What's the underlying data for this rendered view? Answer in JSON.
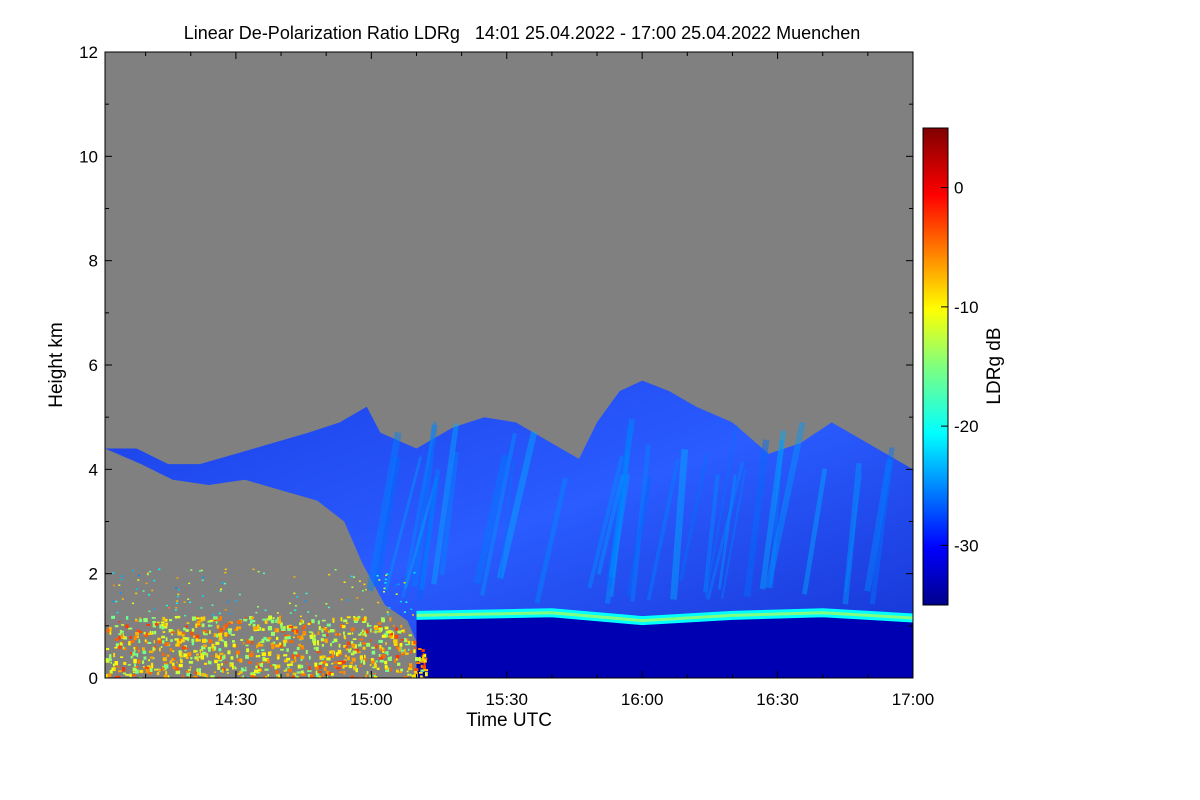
{
  "chart_data": {
    "type": "heatmap",
    "title": "Linear De-Polarization Ratio LDRg   14:01 25.04.2022 - 17:00 25.04.2022 Muenchen",
    "xlabel": "Time UTC",
    "ylabel": "Height km",
    "x_ticks": [
      "14:30",
      "15:00",
      "15:30",
      "16:00",
      "16:30",
      "17:00"
    ],
    "x_tick_minutes": [
      870,
      900,
      930,
      960,
      990,
      1020
    ],
    "xlim_minutes": [
      841,
      1020
    ],
    "y_ticks": [
      0,
      2,
      4,
      6,
      8,
      10,
      12
    ],
    "ylim": [
      0,
      12
    ],
    "colorbar": {
      "label": "LDRg dB",
      "ticks": [
        0,
        -10,
        -20,
        -30
      ],
      "range": [
        -35,
        5
      ],
      "colormap": "jet"
    },
    "no_data_color": "#808080",
    "features": {
      "cloud_top_km": [
        [
          841,
          4.4
        ],
        [
          848,
          4.4
        ],
        [
          855,
          4.1
        ],
        [
          862,
          4.1
        ],
        [
          870,
          4.3
        ],
        [
          878,
          4.5
        ],
        [
          886,
          4.7
        ],
        [
          893,
          4.9
        ],
        [
          899,
          5.2
        ],
        [
          902,
          4.7
        ],
        [
          910,
          4.4
        ],
        [
          918,
          4.8
        ],
        [
          925,
          5.0
        ],
        [
          932,
          4.9
        ],
        [
          940,
          4.5
        ],
        [
          946,
          4.2
        ],
        [
          950,
          4.9
        ],
        [
          955,
          5.5
        ],
        [
          960,
          5.7
        ],
        [
          966,
          5.5
        ],
        [
          972,
          5.2
        ],
        [
          980,
          4.9
        ],
        [
          988,
          4.3
        ],
        [
          995,
          4.5
        ],
        [
          1002,
          4.9
        ],
        [
          1010,
          4.5
        ],
        [
          1020,
          4.0
        ]
      ],
      "cloud_base_km": [
        [
          841,
          4.4
        ],
        [
          849,
          4.1
        ],
        [
          856,
          3.8
        ],
        [
          864,
          3.7
        ],
        [
          872,
          3.8
        ],
        [
          880,
          3.6
        ],
        [
          888,
          3.4
        ],
        [
          894,
          3.0
        ],
        [
          898,
          2.2
        ],
        [
          903,
          1.4
        ],
        [
          908,
          1.1
        ],
        [
          912,
          0.3
        ],
        [
          914,
          0.0
        ],
        [
          1020,
          0.0
        ]
      ],
      "melting_layer": {
        "start_min": 910,
        "end_min": 1020,
        "height_km": [
          [
            910,
            1.2
          ],
          [
            940,
            1.25
          ],
          [
            960,
            1.1
          ],
          [
            980,
            1.2
          ],
          [
            1000,
            1.25
          ],
          [
            1020,
            1.15
          ]
        ],
        "ldr_db": -15
      },
      "ice_ldr_db": -29,
      "rain_ldr_db": -33,
      "clutter_region": {
        "start_min": 841,
        "end_min": 914,
        "top_km": 1.2,
        "ldr_db": -10
      }
    }
  }
}
